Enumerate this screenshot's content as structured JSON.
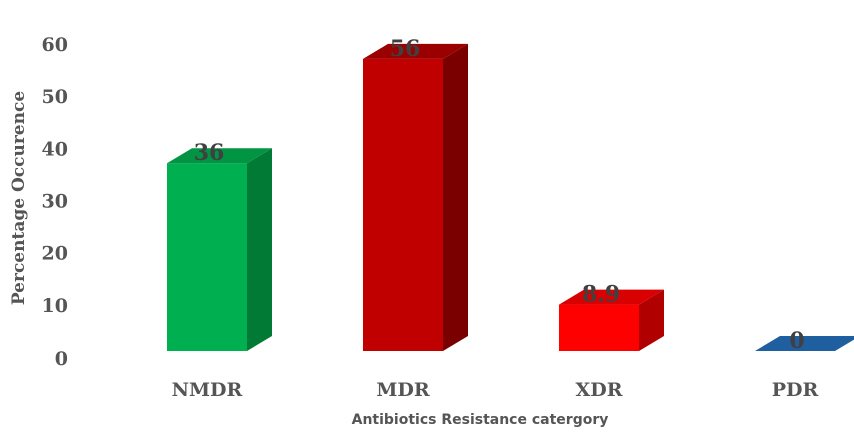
{
  "chart_data": {
    "type": "bar",
    "style": "3d-column",
    "categories": [
      "NMDR",
      "MDR",
      "XDR",
      "PDR"
    ],
    "values": [
      36,
      56,
      8.9,
      0
    ],
    "data_labels": [
      "36",
      "56",
      "8.9",
      "0"
    ],
    "colors": [
      {
        "front": "#00B050",
        "side": "#007A35",
        "top": "#009443"
      },
      {
        "front": "#C00000",
        "side": "#7A0000",
        "top": "#9A0000"
      },
      {
        "front": "#FF0000",
        "side": "#B00000",
        "top": "#D80000"
      },
      {
        "front": "#1F4E79",
        "side": "#163A5C",
        "top": "#1F5FA0"
      }
    ],
    "xlabel": "Antibiotics Resistance catergory",
    "ylabel": "Percentage Occurence",
    "ylim": [
      0,
      60
    ],
    "yticks": [
      "0",
      "10",
      "20",
      "30",
      "40",
      "50",
      "60"
    ],
    "grid": false,
    "legend": "none"
  }
}
